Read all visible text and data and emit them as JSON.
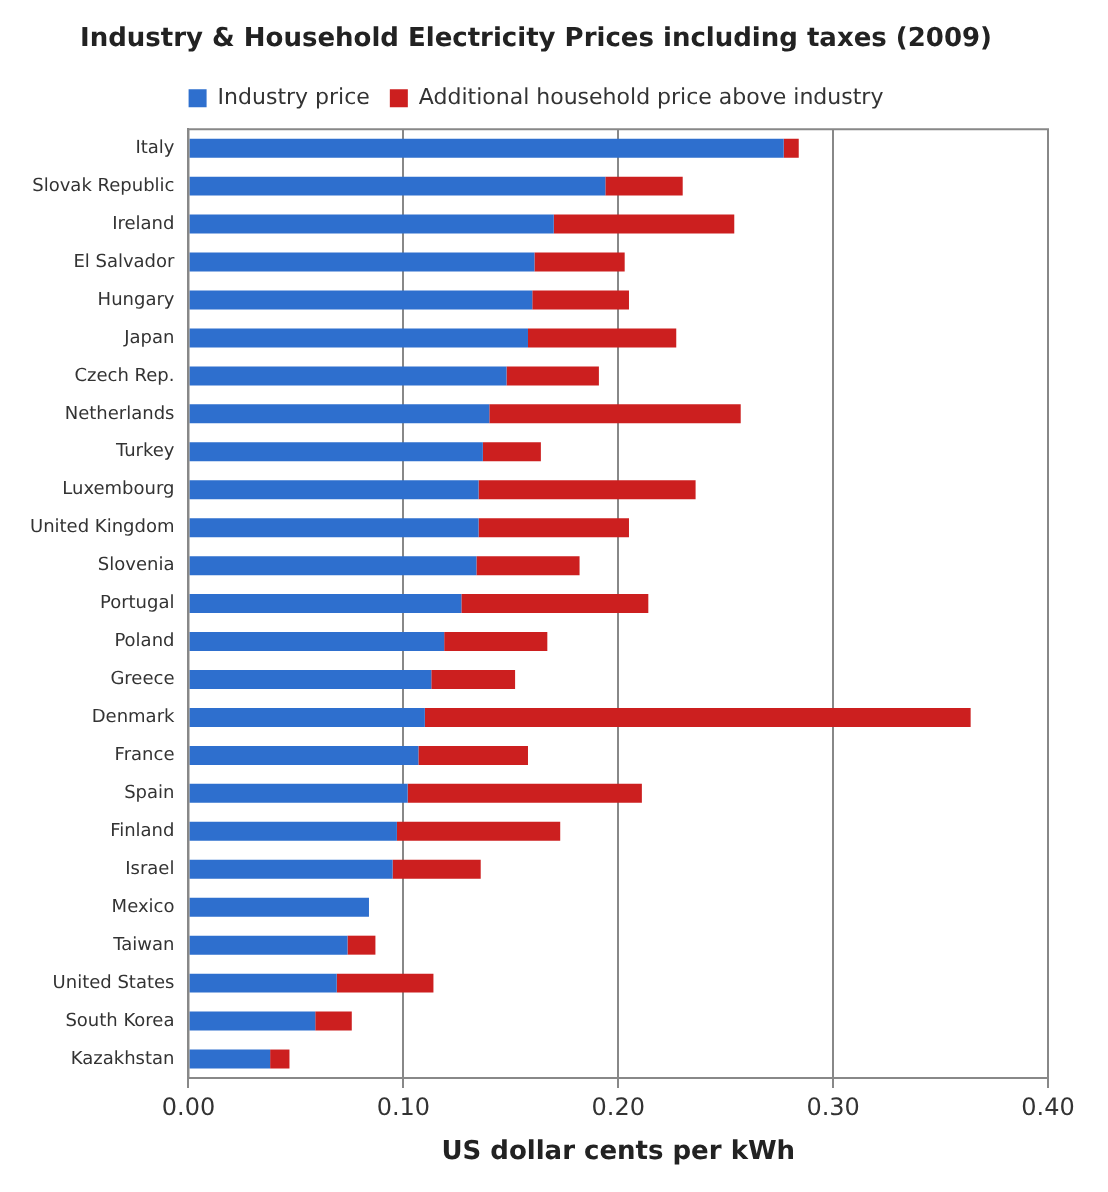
{
  "chart_data": {
    "type": "bar",
    "orientation": "horizontal",
    "stacked": true,
    "title": "Industry & Household Electricity Prices including taxes (2009)",
    "xlabel": "US dollar cents per kWh",
    "categories": [
      "Italy",
      "Slovak Republic",
      "Ireland",
      "El Salvador",
      "Hungary",
      "Japan",
      "Czech Rep.",
      "Netherlands",
      "Turkey",
      "Luxembourg",
      "United Kingdom",
      "Slovenia",
      "Portugal",
      "Poland",
      "Greece",
      "Denmark",
      "France",
      "Spain",
      "Finland",
      "Israel",
      "Mexico",
      "Taiwan",
      "United States",
      "South Korea",
      "Kazakhstan"
    ],
    "series": [
      {
        "name": "Industry price",
        "color": "#2e6fce",
        "values": [
          0.277,
          0.194,
          0.17,
          0.161,
          0.16,
          0.158,
          0.148,
          0.14,
          0.137,
          0.135,
          0.135,
          0.134,
          0.127,
          0.119,
          0.113,
          0.11,
          0.107,
          0.102,
          0.097,
          0.095,
          0.084,
          0.074,
          0.069,
          0.059,
          0.038
        ]
      },
      {
        "name": "Additional household price above industry",
        "color": "#cc1f1f",
        "values": [
          0.007,
          0.036,
          0.084,
          0.042,
          0.045,
          0.069,
          0.043,
          0.117,
          0.027,
          0.101,
          0.07,
          0.048,
          0.087,
          0.048,
          0.039,
          0.254,
          0.051,
          0.109,
          0.076,
          0.041,
          null,
          0.013,
          0.045,
          0.017,
          0.009
        ]
      }
    ],
    "xlim": [
      0,
      0.4
    ],
    "xticks": [
      {
        "value": 0,
        "label": "0.00"
      },
      {
        "value": 0.1,
        "label": "0.10"
      },
      {
        "value": 0.2,
        "label": "0.20"
      },
      {
        "value": 0.3,
        "label": "0.30"
      },
      {
        "value": 0.4,
        "label": "0.40"
      }
    ],
    "grid": "x",
    "legend": "top"
  }
}
